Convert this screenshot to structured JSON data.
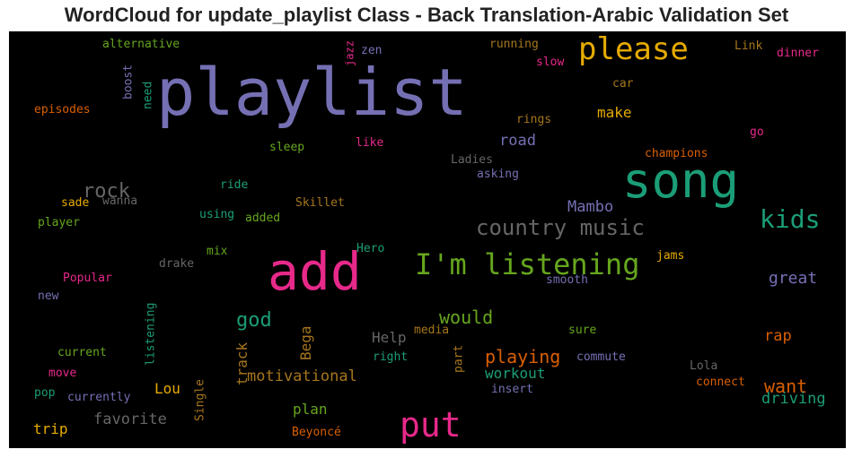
{
  "title": "WordCloud for update_playlist Class - Back Translation-Arabic Validation Set",
  "chart_data": {
    "type": "wordcloud",
    "background": "#000000",
    "palette": [
      "#7570b3",
      "#e7298a",
      "#1b9e77",
      "#66a61e",
      "#e6ab02",
      "#d95f02",
      "#a6761d",
      "#666666"
    ],
    "words": [
      {
        "text": "playlist",
        "color": "#7570b3"
      },
      {
        "text": "song",
        "color": "#1b9e77"
      },
      {
        "text": "add",
        "color": "#e7298a"
      },
      {
        "text": "put",
        "color": "#e7298a"
      },
      {
        "text": "please",
        "color": "#e6ab02"
      },
      {
        "text": "I'm listening",
        "color": "#66a61e"
      },
      {
        "text": "kids",
        "color": "#1b9e77"
      },
      {
        "text": "country music",
        "color": "#666666"
      },
      {
        "text": "rock",
        "color": "#666666"
      },
      {
        "text": "god",
        "color": "#1b9e77"
      },
      {
        "text": "would",
        "color": "#66a61e"
      },
      {
        "text": "playing",
        "color": "#d95f02"
      },
      {
        "text": "want",
        "color": "#d95f02"
      },
      {
        "text": "great",
        "color": "#7570b3"
      },
      {
        "text": "Mambo",
        "color": "#7570b3"
      },
      {
        "text": "road",
        "color": "#7570b3"
      },
      {
        "text": "make",
        "color": "#e6ab02"
      },
      {
        "text": "motivational",
        "color": "#a6761d"
      },
      {
        "text": "workout",
        "color": "#1b9e77"
      },
      {
        "text": "driving",
        "color": "#1b9e77"
      },
      {
        "text": "rap",
        "color": "#d95f02"
      },
      {
        "text": "favorite",
        "color": "#666666"
      },
      {
        "text": "plan",
        "color": "#66a61e"
      },
      {
        "text": "Help",
        "color": "#666666"
      },
      {
        "text": "Lou",
        "color": "#e6ab02"
      },
      {
        "text": "trip",
        "color": "#e6ab02"
      },
      {
        "text": "track",
        "color": "#a6761d"
      },
      {
        "text": "Bega",
        "color": "#a6761d"
      },
      {
        "text": "alternative",
        "color": "#66a61e"
      },
      {
        "text": "jazz",
        "color": "#e7298a"
      },
      {
        "text": "zen",
        "color": "#7570b3"
      },
      {
        "text": "running",
        "color": "#a6761d"
      },
      {
        "text": "Link",
        "color": "#a6761d"
      },
      {
        "text": "dinner",
        "color": "#e7298a"
      },
      {
        "text": "slow",
        "color": "#e7298a"
      },
      {
        "text": "boost",
        "color": "#7570b3"
      },
      {
        "text": "need",
        "color": "#1b9e77"
      },
      {
        "text": "episodes",
        "color": "#d95f02"
      },
      {
        "text": "car",
        "color": "#a6761d"
      },
      {
        "text": "rings",
        "color": "#a6761d"
      },
      {
        "text": "go",
        "color": "#e7298a"
      },
      {
        "text": "sleep",
        "color": "#66a61e"
      },
      {
        "text": "like",
        "color": "#e7298a"
      },
      {
        "text": "champions",
        "color": "#d95f02"
      },
      {
        "text": "Ladies",
        "color": "#666666"
      },
      {
        "text": "asking",
        "color": "#7570b3"
      },
      {
        "text": "ride",
        "color": "#1b9e77"
      },
      {
        "text": "wanna",
        "color": "#666666"
      },
      {
        "text": "Skillet",
        "color": "#a6761d"
      },
      {
        "text": "sade",
        "color": "#e6ab02"
      },
      {
        "text": "using",
        "color": "#1b9e77"
      },
      {
        "text": "added",
        "color": "#66a61e"
      },
      {
        "text": "player",
        "color": "#66a61e"
      },
      {
        "text": "Hero",
        "color": "#1b9e77"
      },
      {
        "text": "mix",
        "color": "#66a61e"
      },
      {
        "text": "jams",
        "color": "#e6ab02"
      },
      {
        "text": "drake",
        "color": "#666666"
      },
      {
        "text": "Popular",
        "color": "#e7298a"
      },
      {
        "text": "smooth",
        "color": "#7570b3"
      },
      {
        "text": "new",
        "color": "#7570b3"
      },
      {
        "text": "listening",
        "color": "#1b9e77"
      },
      {
        "text": "media",
        "color": "#a6761d"
      },
      {
        "text": "sure",
        "color": "#66a61e"
      },
      {
        "text": "part",
        "color": "#a6761d"
      },
      {
        "text": "current",
        "color": "#66a61e"
      },
      {
        "text": "right",
        "color": "#1b9e77"
      },
      {
        "text": "commute",
        "color": "#7570b3"
      },
      {
        "text": "Lola",
        "color": "#666666"
      },
      {
        "text": "move",
        "color": "#e7298a"
      },
      {
        "text": "connect",
        "color": "#d95f02"
      },
      {
        "text": "pop",
        "color": "#1b9e77"
      },
      {
        "text": "insert",
        "color": "#7570b3"
      },
      {
        "text": "currently",
        "color": "#7570b3"
      },
      {
        "text": "Single",
        "color": "#a6761d"
      },
      {
        "text": "Beyoncé",
        "color": "#d95f02"
      }
    ]
  }
}
